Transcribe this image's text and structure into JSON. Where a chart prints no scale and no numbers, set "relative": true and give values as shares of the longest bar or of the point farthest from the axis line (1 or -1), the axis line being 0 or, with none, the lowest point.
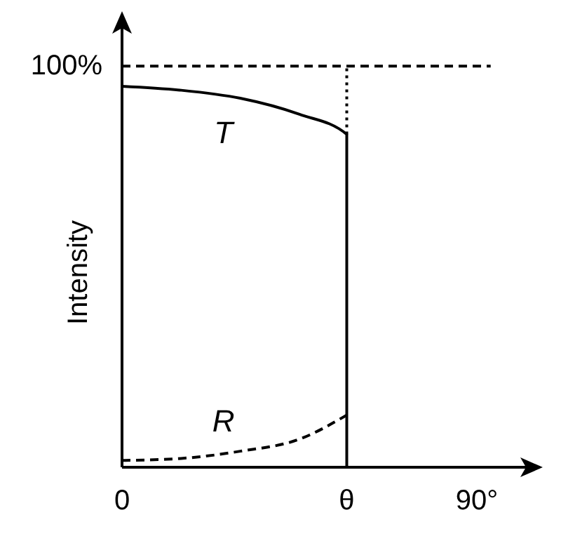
{
  "chart_data": {
    "type": "line",
    "ylabel": "Intensity",
    "relative": true,
    "annotations": [
      "100%"
    ],
    "xlim": [
      0,
      106
    ],
    "xticks": [
      0,
      {
        "value": 57,
        "label": "θ"
      },
      {
        "value": 90,
        "label": "90°"
      }
    ],
    "grid": false,
    "legend": false,
    "marker": "none",
    "series": [
      {
        "name": "T",
        "color": "#000000",
        "line_style": "solid",
        "x": [
          0,
          15,
          30,
          45,
          57,
          57
        ],
        "values": [
          0.95,
          0.94,
          0.92,
          0.88,
          0.83,
          0
        ]
      },
      {
        "name": "R",
        "color": "#000000",
        "line_style": "dashed",
        "x": [
          0,
          15,
          30,
          45,
          57
        ],
        "values": [
          0.017,
          0.022,
          0.04,
          0.07,
          0.13
        ]
      },
      {
        "color": "#000000",
        "line_style": "dotted",
        "x": [
          57,
          57
        ],
        "values": [
          0.83,
          1
        ]
      },
      {
        "color": "#000000",
        "line_style": "dashed",
        "x": [
          0,
          93.5
        ],
        "values": [
          1,
          1
        ]
      }
    ]
  }
}
